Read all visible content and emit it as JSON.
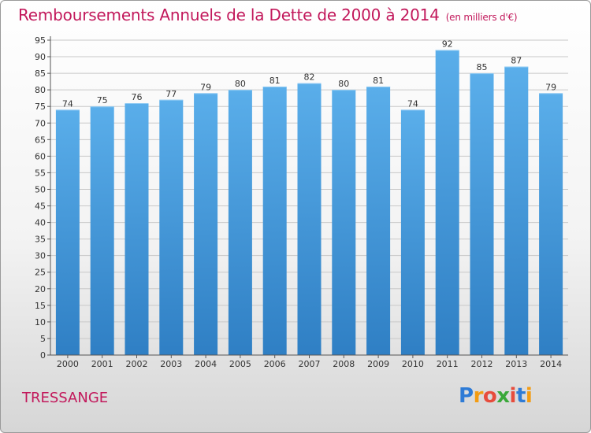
{
  "title": "Remboursements Annuels de la Dette de 2000 à 2014",
  "subtitle": "(en milliers d'€)",
  "location": "TRESSANGE",
  "logo": {
    "text": "Proxiti",
    "letters": [
      "P",
      "r",
      "o",
      "x",
      "i",
      "t",
      "i"
    ],
    "colors": [
      "#2e7bd6",
      "#f39c12",
      "#e74c3c",
      "#3aa83a",
      "#e74c3c",
      "#2e7bd6",
      "#f39c12"
    ]
  },
  "colors": {
    "bar_top": "#5aaeea",
    "bar_bottom": "#2f7fc4",
    "title": "#c2185b"
  },
  "chart_data": {
    "type": "bar",
    "title": "Remboursements Annuels de la Dette de 2000 à 2014",
    "xlabel": "",
    "ylabel": "",
    "categories": [
      "2000",
      "2001",
      "2002",
      "2003",
      "2004",
      "2005",
      "2006",
      "2007",
      "2008",
      "2009",
      "2010",
      "2011",
      "2012",
      "2013",
      "2014"
    ],
    "values": [
      74,
      75,
      76,
      77,
      79,
      80,
      81,
      82,
      80,
      81,
      74,
      92,
      85,
      87,
      79
    ],
    "ylim": [
      0,
      95
    ],
    "yticks": [
      0,
      5,
      10,
      15,
      20,
      25,
      30,
      35,
      40,
      45,
      50,
      55,
      60,
      65,
      70,
      75,
      80,
      85,
      90,
      95
    ],
    "grid": true
  }
}
